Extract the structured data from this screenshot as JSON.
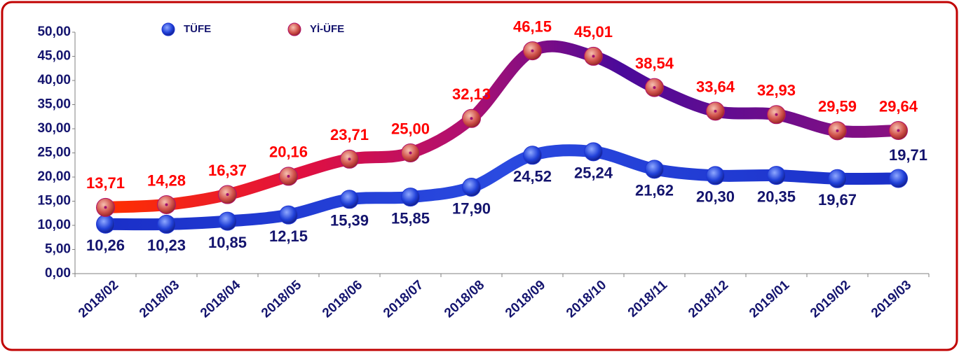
{
  "chart_data": {
    "type": "line",
    "categories": [
      "2018/02",
      "2018/03",
      "2018/04",
      "2018/05",
      "2018/06",
      "2018/07",
      "2018/08",
      "2018/09",
      "2018/10",
      "2018/11",
      "2018/12",
      "2019/01",
      "2019/02",
      "2019/03"
    ],
    "series": [
      {
        "name": "TÜFE",
        "color": "#1e35d2",
        "label_color": "#14146e",
        "values": [
          10.26,
          10.23,
          10.85,
          12.15,
          15.39,
          15.85,
          17.9,
          24.52,
          25.24,
          21.62,
          20.3,
          20.35,
          19.67,
          19.71
        ],
        "value_labels": [
          "10,26",
          "10,23",
          "10,85",
          "12,15",
          "15,39",
          "15,85",
          "17,90",
          "24,52",
          "25,24",
          "21,62",
          "20,30",
          "20,35",
          "19,67",
          "19,71"
        ]
      },
      {
        "name": "Yİ-ÜFE",
        "color": "#b0106a",
        "label_color": "#ff0000",
        "values": [
          13.71,
          14.28,
          16.37,
          20.16,
          23.71,
          25.0,
          32.13,
          46.15,
          45.01,
          38.54,
          33.64,
          32.93,
          29.59,
          29.64
        ],
        "value_labels": [
          "13,71",
          "14,28",
          "16,37",
          "20,16",
          "23,71",
          "25,00",
          "32,13",
          "46,15",
          "45,01",
          "38,54",
          "33,64",
          "32,93",
          "29,59",
          "29,64"
        ]
      }
    ],
    "ylim": [
      0,
      50
    ],
    "yticks": [
      {
        "value": 0,
        "label": "0,00"
      },
      {
        "value": 5,
        "label": "5,00"
      },
      {
        "value": 10,
        "label": "10,00"
      },
      {
        "value": 15,
        "label": "15,00"
      },
      {
        "value": 20,
        "label": "20,00"
      },
      {
        "value": 25,
        "label": "25,00"
      },
      {
        "value": 30,
        "label": "30,00"
      },
      {
        "value": 35,
        "label": "35,00"
      },
      {
        "value": 40,
        "label": "40,00"
      },
      {
        "value": 45,
        "label": "45,00"
      },
      {
        "value": 50,
        "label": "50,00"
      }
    ],
    "legend": "top"
  }
}
